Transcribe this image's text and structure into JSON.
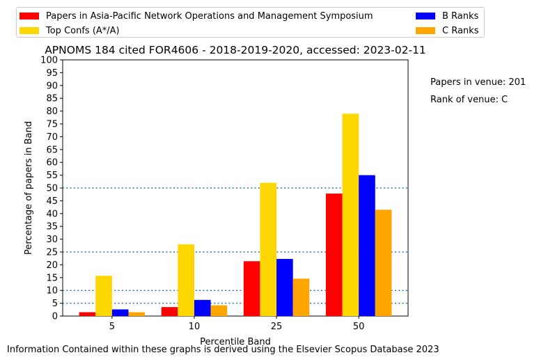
{
  "chart_data": {
    "type": "bar",
    "title": "APNOMS 184 cited FOR4606 - 2018-2019-2020, accessed: 2023-02-11",
    "xlabel": "Percentile Band",
    "ylabel": "Percentage of papers in Band",
    "categories": [
      "5",
      "10",
      "25",
      "50"
    ],
    "ylim": [
      0,
      100
    ],
    "yticks": [
      0,
      5,
      10,
      15,
      20,
      25,
      30,
      35,
      40,
      45,
      50,
      55,
      60,
      65,
      70,
      75,
      80,
      85,
      90,
      95,
      100
    ],
    "reference_lines": [
      5,
      10,
      25,
      50
    ],
    "reference_line_color": "#1f77b4",
    "legend_position": "top",
    "series": [
      {
        "name": "Papers in Asia-Pacific Network Operations and Management Symposium",
        "color": "#ff0000",
        "values": [
          1.5,
          3.5,
          21.4,
          47.8
        ]
      },
      {
        "name": "Top Confs (A*/A)",
        "color": "#ffd700",
        "values": [
          15.7,
          28.0,
          52.0,
          79.0
        ]
      },
      {
        "name": "B Ranks",
        "color": "#0000ff",
        "values": [
          2.6,
          6.3,
          22.3,
          55.0
        ]
      },
      {
        "name": "C Ranks",
        "color": "#ffa500",
        "values": [
          1.5,
          4.2,
          14.6,
          41.5
        ]
      }
    ]
  },
  "side_info": {
    "papers_in_venue": "Papers in venue: 201",
    "rank_of_venue": "Rank of venue: C"
  },
  "footer": "Information Contained within these graphs is derived using the Elsevier Scopus Database 2023"
}
